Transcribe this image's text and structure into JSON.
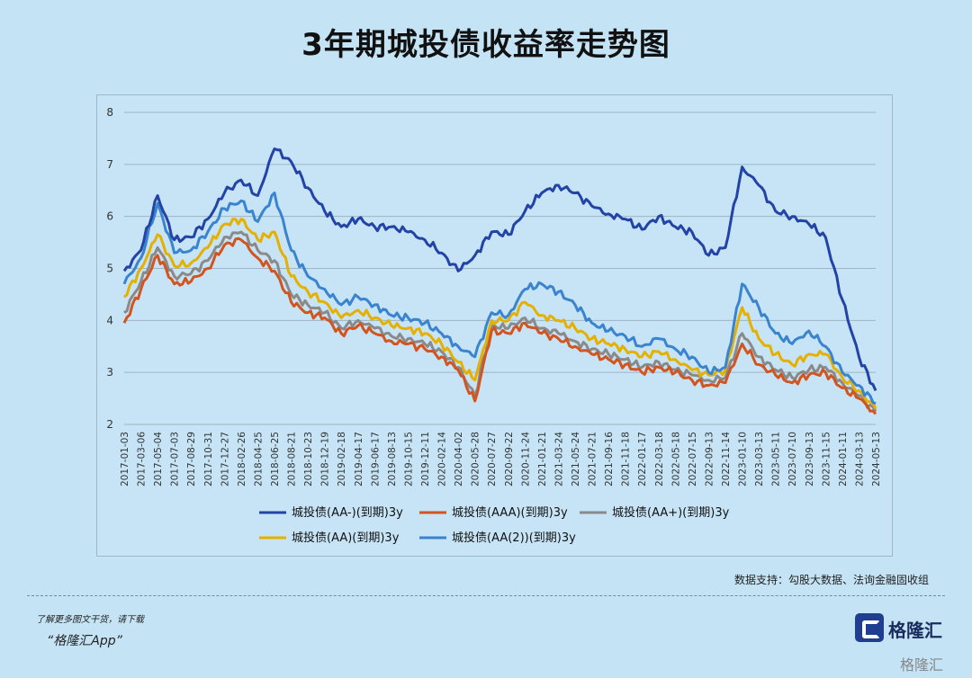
{
  "title": "3年期城投债收益率走势图",
  "source_note": "数据支持：勾股大数据、法询金融固收组",
  "promo_line1": "了解更多图文干货，请下载",
  "promo_line2": "“格隆汇App”",
  "brand_name": "格隆汇",
  "corner_watermark": "格隆汇",
  "chart_data": {
    "type": "line",
    "title": "",
    "xlabel": "",
    "ylabel": "",
    "ylim": [
      2,
      8
    ],
    "yticks": [
      2,
      3,
      4,
      5,
      6,
      7,
      8
    ],
    "grid": true,
    "legend_position": "bottom",
    "x_tick_labels": [
      "2017-01-03",
      "2017-03-06",
      "2017-05-04",
      "2017-07-03",
      "2017-08-29",
      "2017-10-31",
      "2017-12-27",
      "2018-02-26",
      "2018-04-25",
      "2018-06-25",
      "2018-08-21",
      "2018-10-23",
      "2018-12-19",
      "2019-02-18",
      "2019-04-17",
      "2019-06-17",
      "2019-08-13",
      "2019-10-15",
      "2019-12-11",
      "2020-02-14",
      "2020-04-02",
      "2020-05-28",
      "2020-07-27",
      "2020-09-22",
      "2020-11-24",
      "2021-01-21",
      "2021-03-24",
      "2021-05-24",
      "2021-07-21",
      "2021-09-16",
      "2021-11-18",
      "2022-01-17",
      "2022-03-18",
      "2022-05-18",
      "2022-07-15",
      "2022-09-13",
      "2022-11-14",
      "2023-01-10",
      "2023-03-13",
      "2023-05-11",
      "2023-07-10",
      "2023-09-13",
      "2023-11-15",
      "2024-01-11",
      "2024-03-13",
      "2024-05-13"
    ],
    "series": [
      {
        "name": "城投债(AA-)(到期)3y",
        "color": "#2343a6",
        "values": [
          4.95,
          5.35,
          6.4,
          5.55,
          5.6,
          5.95,
          6.45,
          6.7,
          6.4,
          7.3,
          7.05,
          6.55,
          6.1,
          5.8,
          5.95,
          5.8,
          5.8,
          5.7,
          5.55,
          5.3,
          4.95,
          5.25,
          5.7,
          5.65,
          6.1,
          6.45,
          6.6,
          6.45,
          6.2,
          6.05,
          5.95,
          5.75,
          6.0,
          5.8,
          5.7,
          5.25,
          5.4,
          6.95,
          6.6,
          6.1,
          6.0,
          5.85,
          5.6,
          4.4,
          3.3,
          2.65
        ]
      },
      {
        "name": "城投债(AAA)(到期)3y",
        "color": "#d2541f",
        "values": [
          3.95,
          4.6,
          5.25,
          4.7,
          4.75,
          5.0,
          5.45,
          5.55,
          5.2,
          4.95,
          4.35,
          4.15,
          4.05,
          3.75,
          3.9,
          3.75,
          3.6,
          3.55,
          3.45,
          3.3,
          3.05,
          2.45,
          3.8,
          3.75,
          3.95,
          3.75,
          3.65,
          3.5,
          3.35,
          3.25,
          3.15,
          3.0,
          3.1,
          3.0,
          2.85,
          2.75,
          2.8,
          3.55,
          3.15,
          2.95,
          2.8,
          2.95,
          3.0,
          2.7,
          2.5,
          2.2
        ]
      },
      {
        "name": "城投债(AA+)(到期)3y",
        "color": "#8a8a8a",
        "values": [
          4.15,
          4.75,
          5.4,
          4.85,
          4.9,
          5.15,
          5.6,
          5.7,
          5.35,
          5.15,
          4.5,
          4.3,
          4.15,
          3.85,
          4.0,
          3.85,
          3.7,
          3.65,
          3.55,
          3.4,
          3.1,
          2.55,
          3.9,
          3.85,
          4.05,
          3.85,
          3.75,
          3.6,
          3.45,
          3.35,
          3.25,
          3.1,
          3.2,
          3.05,
          2.95,
          2.85,
          2.9,
          3.75,
          3.3,
          3.05,
          2.9,
          3.05,
          3.1,
          2.8,
          2.55,
          2.25
        ]
      },
      {
        "name": "城投债(AA)(到期)3y",
        "color": "#e5b000",
        "values": [
          4.45,
          5.0,
          5.65,
          5.05,
          5.1,
          5.4,
          5.85,
          5.95,
          5.55,
          5.7,
          4.85,
          4.55,
          4.35,
          4.05,
          4.2,
          4.05,
          3.9,
          3.85,
          3.75,
          3.55,
          3.2,
          2.85,
          4.0,
          4.0,
          4.35,
          4.1,
          4.0,
          3.85,
          3.65,
          3.55,
          3.45,
          3.3,
          3.4,
          3.25,
          3.05,
          2.95,
          3.05,
          4.25,
          3.65,
          3.35,
          3.15,
          3.35,
          3.35,
          2.9,
          2.65,
          2.3
        ]
      },
      {
        "name": "城投债(AA(2))(到期)3y",
        "color": "#3a84cf",
        "values": [
          4.7,
          5.2,
          6.25,
          5.3,
          5.35,
          5.7,
          6.15,
          6.3,
          5.9,
          6.45,
          5.35,
          4.85,
          4.6,
          4.3,
          4.45,
          4.3,
          4.1,
          4.05,
          3.95,
          3.75,
          3.5,
          3.3,
          4.15,
          4.1,
          4.6,
          4.7,
          4.55,
          4.3,
          3.95,
          3.8,
          3.7,
          3.5,
          3.65,
          3.45,
          3.3,
          3.0,
          3.1,
          4.7,
          4.25,
          3.75,
          3.55,
          3.8,
          3.5,
          3.0,
          2.75,
          2.4
        ]
      }
    ]
  }
}
